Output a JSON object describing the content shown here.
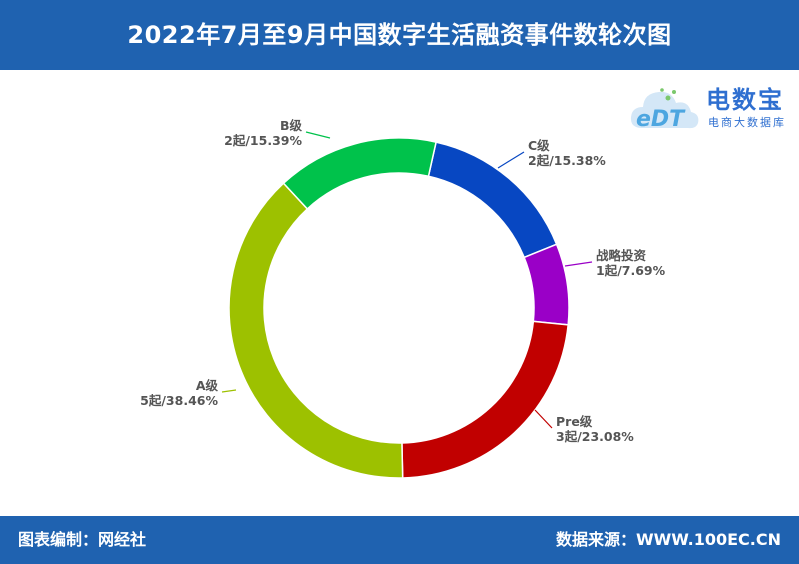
{
  "header": {
    "title": "2022年7月至9月中国数字生活融资事件数轮次图"
  },
  "footer": {
    "left": "图表编制：网经社",
    "right": "数据来源：WWW.100EC.CN"
  },
  "logo": {
    "mark": "eDT",
    "brand": "电数宝",
    "sub": "电商大数据库"
  },
  "colors": {
    "header_bg": "#1F62B0",
    "text": "#555555"
  },
  "chart_data": {
    "type": "pie",
    "donut": true,
    "unit": "起",
    "categories": [
      "C级",
      "战略投资",
      "Pre级",
      "A级",
      "B级"
    ],
    "values": [
      2,
      1,
      3,
      5,
      2
    ],
    "percents": [
      "15.38%",
      "7.69%",
      "23.08%",
      "38.46%",
      "15.39%"
    ],
    "colors": [
      "#0747C2",
      "#9A00C7",
      "#C10000",
      "#9DC100",
      "#00C24B"
    ],
    "labels": [
      {
        "name": "C级",
        "value": "2起/15.38%"
      },
      {
        "name": "战略投资",
        "value": "1起/7.69%"
      },
      {
        "name": "Pre级",
        "value": "3起/23.08%"
      },
      {
        "name": "A级",
        "value": "5起/38.46%"
      },
      {
        "name": "B级",
        "value": "2起/15.39%"
      }
    ]
  }
}
